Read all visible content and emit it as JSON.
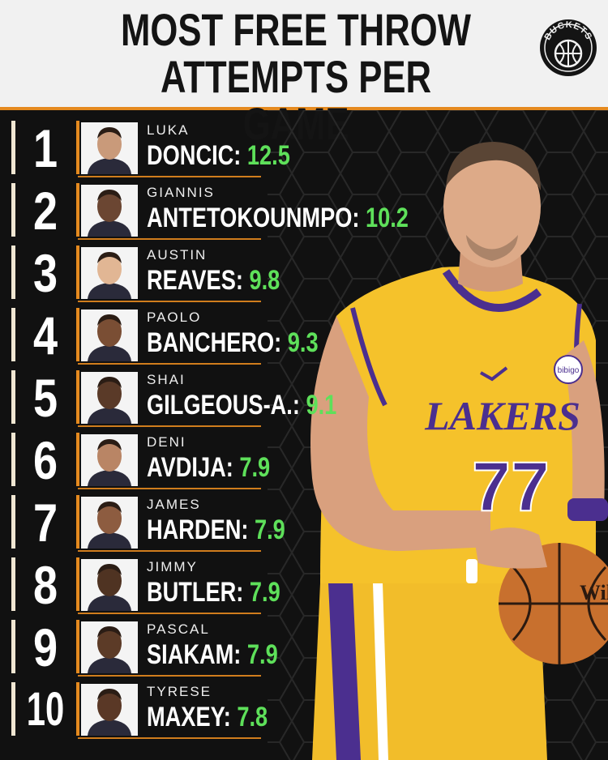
{
  "header": {
    "title_line1": "MOST FREE THROW",
    "title_line2": "ATTEMPTS PER GAME",
    "logo_text": "BUCKETS"
  },
  "colors": {
    "accent": "#e58a1f",
    "value_green": "#5ee05a",
    "background": "#111111",
    "header_bg": "#f1f1f1"
  },
  "hero": {
    "jersey_team": "LAKERS",
    "jersey_number": "77",
    "patch": "bibigo",
    "ball_brand": "Wil"
  },
  "chart_data": {
    "type": "table",
    "title": "MOST FREE THROW ATTEMPTS PER GAME",
    "columns": [
      "rank",
      "first_name",
      "last_name",
      "value"
    ],
    "rows": [
      {
        "rank": "1",
        "first": "LUKA",
        "last": "DONCIC:",
        "value": "12.5"
      },
      {
        "rank": "2",
        "first": "GIANNIS",
        "last": "ANTETOKOUNMPO:",
        "value": "10.2"
      },
      {
        "rank": "3",
        "first": "AUSTIN",
        "last": "REAVES:",
        "value": "9.8"
      },
      {
        "rank": "4",
        "first": "PAOLO",
        "last": "BANCHERO:",
        "value": "9.3"
      },
      {
        "rank": "5",
        "first": "SHAI",
        "last": "GILGEOUS-A.:",
        "value": "9.1"
      },
      {
        "rank": "6",
        "first": "DENI",
        "last": "AVDIJA:",
        "value": "7.9"
      },
      {
        "rank": "7",
        "first": "JAMES",
        "last": "HARDEN:",
        "value": "7.9"
      },
      {
        "rank": "8",
        "first": "JIMMY",
        "last": "BUTLER:",
        "value": "7.9"
      },
      {
        "rank": "9",
        "first": "PASCAL",
        "last": "SIAKAM:",
        "value": "7.9"
      },
      {
        "rank": "10",
        "first": "TYRESE",
        "last": "MAXEY:",
        "value": "7.8"
      }
    ]
  }
}
